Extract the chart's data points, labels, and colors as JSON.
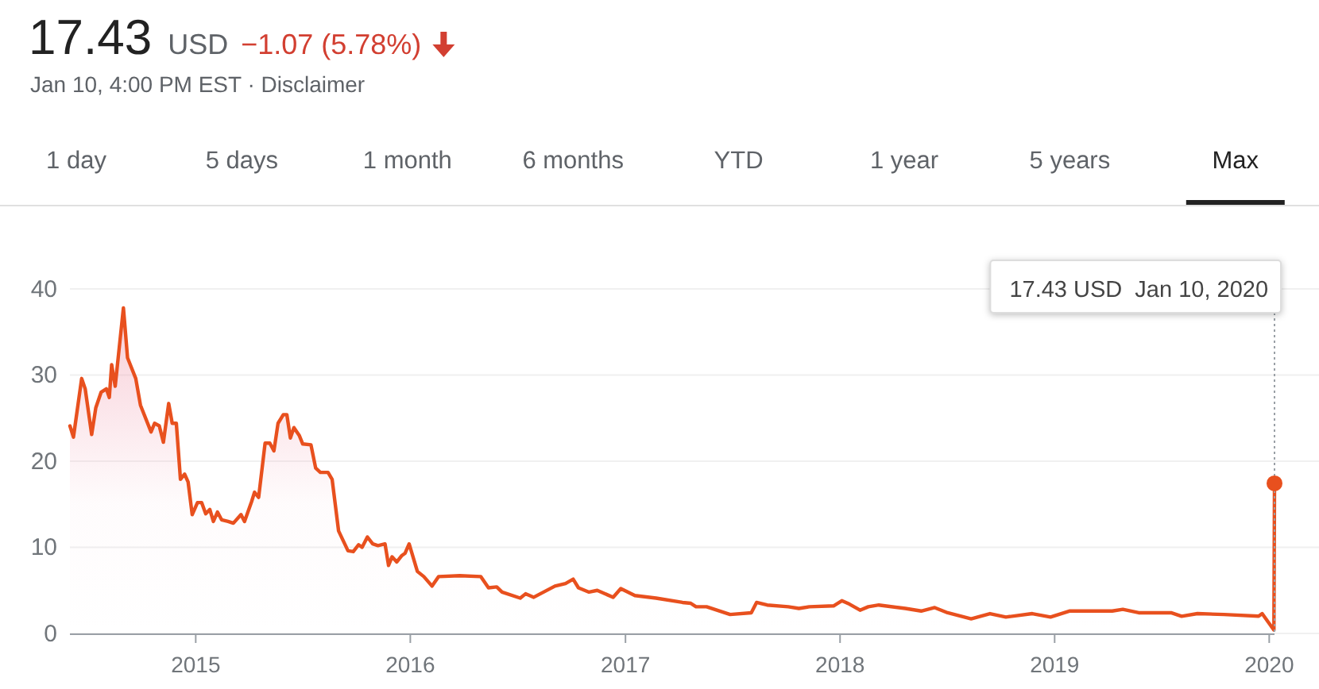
{
  "chart_data": {
    "type": "area",
    "title": "17.43",
    "subtitle": "Jan 10, 4:00 PM EST · Disclaimer",
    "annotations": [
      "USD",
      "−1.07 (5.78%)",
      "1 day",
      "5 days",
      "1 month",
      "6 months",
      "YTD",
      "1 year",
      "5 years",
      "Max",
      "17.43 USD  Jan 10, 2020"
    ],
    "x": [
      "2014-06-01",
      "2014-06-07",
      "2014-06-21",
      "2014-06-27",
      "2014-07-08",
      "2014-07-15",
      "2014-07-24",
      "2014-08-02",
      "2014-08-07",
      "2014-08-11",
      "2014-08-17",
      "2014-08-31",
      "2014-09-07",
      "2014-09-21",
      "2014-09-29",
      "2014-10-17",
      "2014-10-23",
      "2014-10-31",
      "2014-11-07",
      "2014-11-16",
      "2014-11-22",
      "2014-11-29",
      "2014-12-06",
      "2014-12-13",
      "2014-12-19",
      "2014-12-26",
      "2015-01-04",
      "2015-01-11",
      "2015-01-18",
      "2015-01-25",
      "2015-01-31",
      "2015-02-07",
      "2015-02-14",
      "2015-02-25",
      "2015-03-06",
      "2015-03-19",
      "2015-03-25",
      "2015-04-06",
      "2015-04-11",
      "2015-04-18",
      "2015-04-29",
      "2015-05-07",
      "2015-05-14",
      "2015-05-21",
      "2015-05-30",
      "2015-06-05",
      "2015-06-11",
      "2015-06-17",
      "2015-06-26",
      "2015-07-02",
      "2015-07-16",
      "2015-07-24",
      "2015-08-01",
      "2015-08-14",
      "2015-08-21",
      "2015-09-01",
      "2015-09-17",
      "2015-09-26",
      "2015-10-05",
      "2015-10-11",
      "2015-10-20",
      "2015-10-29",
      "2015-11-07",
      "2015-11-19",
      "2015-11-25",
      "2015-12-01",
      "2015-12-09",
      "2015-12-17",
      "2015-12-23",
      "2015-12-30",
      "2016-01-13",
      "2016-01-24",
      "2016-02-07",
      "2016-02-18",
      "2016-03-25",
      "2016-04-30",
      "2016-05-13",
      "2016-05-27",
      "2016-06-05",
      "2016-07-06",
      "2016-07-15",
      "2016-07-29",
      "2016-09-03",
      "2016-09-21",
      "2016-10-04",
      "2016-10-13",
      "2016-10-31",
      "2016-11-14",
      "2016-12-11",
      "2016-12-24",
      "2017-01-17",
      "2017-02-22",
      "2017-04-08",
      "2017-04-22",
      "2017-05-01",
      "2017-05-19",
      "2017-06-28",
      "2017-08-03",
      "2017-08-12",
      "2017-08-30",
      "2017-10-05",
      "2017-10-23",
      "2017-11-10",
      "2017-12-21",
      "2018-01-04",
      "2018-01-17",
      "2018-02-04",
      "2018-02-18",
      "2018-03-08",
      "2018-04-22",
      "2018-05-19",
      "2018-06-11",
      "2018-07-03",
      "2018-08-12",
      "2018-09-13",
      "2018-10-10",
      "2018-11-24",
      "2018-12-25",
      "2019-01-26",
      "2019-02-23",
      "2019-04-09",
      "2019-04-27",
      "2019-05-24",
      "2019-07-18",
      "2019-08-05",
      "2019-09-01",
      "2019-10-16",
      "2019-12-14",
      "2019-12-20",
      "2020-01-09",
      "2020-01-10"
    ],
    "series": [
      {
        "color": "#e8501e",
        "values": [
          24.1,
          22.8,
          29.6,
          28.4,
          23.1,
          26.2,
          28,
          28.4,
          27.4,
          31.2,
          28.7,
          37.8,
          32,
          29.6,
          26.5,
          23.4,
          24.4,
          24.1,
          22.2,
          26.7,
          24.4,
          24.4,
          17.9,
          18.5,
          17.6,
          13.8,
          15.2,
          15.2,
          13.9,
          14.4,
          13,
          14.1,
          13.2,
          13,
          12.8,
          13.8,
          13,
          15.3,
          16.4,
          15.8,
          22.1,
          22.1,
          21.2,
          24.4,
          25.4,
          25.4,
          22.7,
          23.9,
          23,
          22,
          21.9,
          19.2,
          18.7,
          18.7,
          17.9,
          11.9,
          9.6,
          9.5,
          10.3,
          10,
          11.2,
          10.4,
          10.2,
          10.4,
          7.9,
          8.9,
          8.3,
          9,
          9.3,
          10.4,
          7.2,
          6.6,
          5.5,
          6.6,
          6.7,
          6.6,
          5.3,
          5.4,
          4.8,
          4.1,
          4.6,
          4.2,
          5.5,
          5.8,
          6.3,
          5.3,
          4.8,
          5,
          4.2,
          5.2,
          4.4,
          4.1,
          3.6,
          3.5,
          3.1,
          3.1,
          2.2,
          2.4,
          3.6,
          3.3,
          3.1,
          2.9,
          3.1,
          3.2,
          3.8,
          3.4,
          2.7,
          3.1,
          3.3,
          2.9,
          2.6,
          3,
          2.4,
          1.7,
          2.3,
          1.9,
          2.3,
          1.9,
          2.6,
          2.6,
          2.6,
          2.8,
          2.4,
          2.4,
          2,
          2.3,
          2.2,
          2,
          2.3,
          0.4,
          17.43
        ]
      }
    ],
    "xlim": [
      "2014-06-01",
      "2020-01-10"
    ],
    "xticks": [
      "2015",
      "2016",
      "2017",
      "2018",
      "2019",
      "2020"
    ],
    "ylim": [
      0,
      40
    ],
    "yticks": [
      0,
      10,
      20,
      30,
      40
    ],
    "grid": "y"
  }
}
